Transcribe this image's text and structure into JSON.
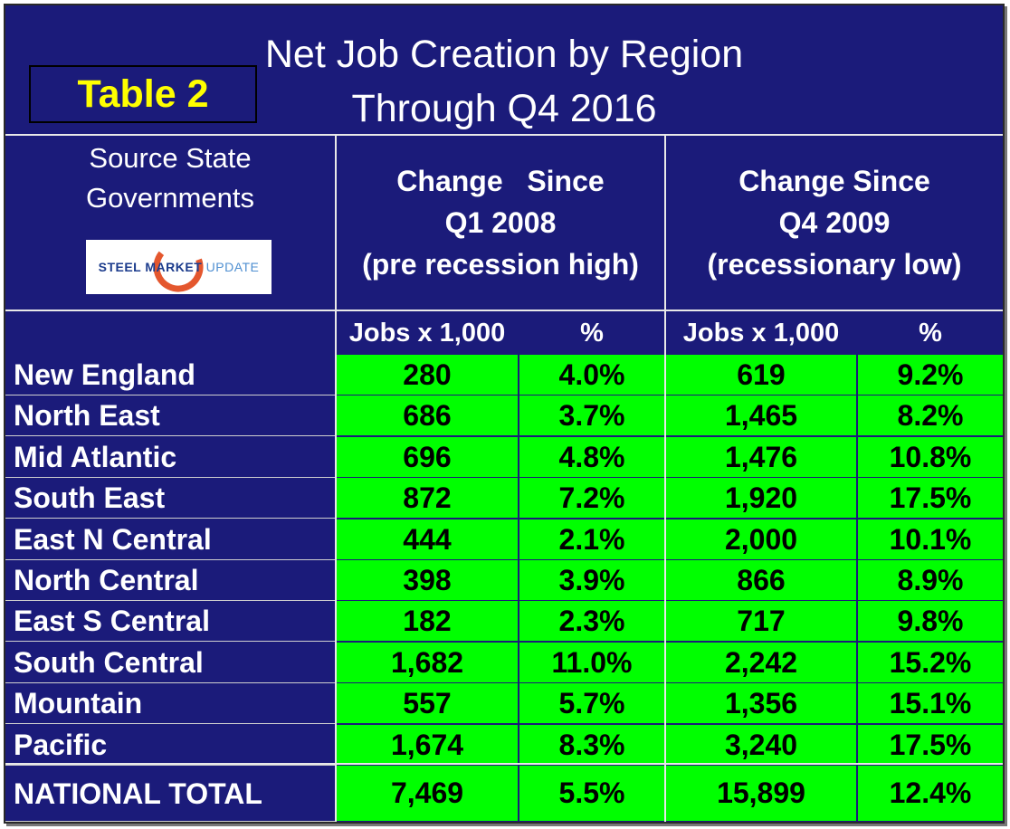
{
  "title_line1": "Net Job Creation by Region",
  "title_line2": "Through Q4 2016",
  "badge": "Table 2",
  "source": {
    "line1": "Source State",
    "line2": "Governments",
    "logo_bold": "STEEL MARKET",
    "logo_light": "UPDATE"
  },
  "group1": {
    "line1": "Change   Since",
    "line2": "Q1 2008",
    "line3": "(pre recession high)"
  },
  "group2": {
    "line1": "Change Since",
    "line2": "Q4 2009",
    "line3": "(recessionary low)"
  },
  "columns": [
    "Jobs x 1,000",
    "%",
    "Jobs x 1,000",
    "%"
  ],
  "rows": [
    {
      "region": "New England",
      "jobs_2008": "280",
      "pct_2008": "4.0%",
      "jobs_2009": "619",
      "pct_2009": "9.2%"
    },
    {
      "region": "North East",
      "jobs_2008": "686",
      "pct_2008": "3.7%",
      "jobs_2009": "1,465",
      "pct_2009": "8.2%"
    },
    {
      "region": "Mid Atlantic",
      "jobs_2008": "696",
      "pct_2008": "4.8%",
      "jobs_2009": "1,476",
      "pct_2009": "10.8%"
    },
    {
      "region": "South East",
      "jobs_2008": "872",
      "pct_2008": "7.2%",
      "jobs_2009": "1,920",
      "pct_2009": "17.5%"
    },
    {
      "region": "East N Central",
      "jobs_2008": "444",
      "pct_2008": "2.1%",
      "jobs_2009": "2,000",
      "pct_2009": "10.1%"
    },
    {
      "region": "North Central",
      "jobs_2008": "398",
      "pct_2008": "3.9%",
      "jobs_2009": "866",
      "pct_2009": "8.9%"
    },
    {
      "region": "East S Central",
      "jobs_2008": "182",
      "pct_2008": "2.3%",
      "jobs_2009": "717",
      "pct_2009": "9.8%"
    },
    {
      "region": "South Central",
      "jobs_2008": "1,682",
      "pct_2008": "11.0%",
      "jobs_2009": "2,242",
      "pct_2009": "15.2%"
    },
    {
      "region": "Mountain",
      "jobs_2008": "557",
      "pct_2008": "5.7%",
      "jobs_2009": "1,356",
      "pct_2009": "15.1%"
    },
    {
      "region": "Pacific",
      "jobs_2008": "1,674",
      "pct_2008": "8.3%",
      "jobs_2009": "3,240",
      "pct_2009": "17.5%"
    }
  ],
  "total": {
    "region": "NATIONAL TOTAL",
    "jobs_2008": "7,469",
    "pct_2008": "5.5%",
    "jobs_2009": "15,899",
    "pct_2009": "12.4%"
  },
  "colors": {
    "background": "#1b1b7a",
    "cell": "#00ff00",
    "badge_text": "#ffff00",
    "logo_arc": "#e4572e"
  }
}
